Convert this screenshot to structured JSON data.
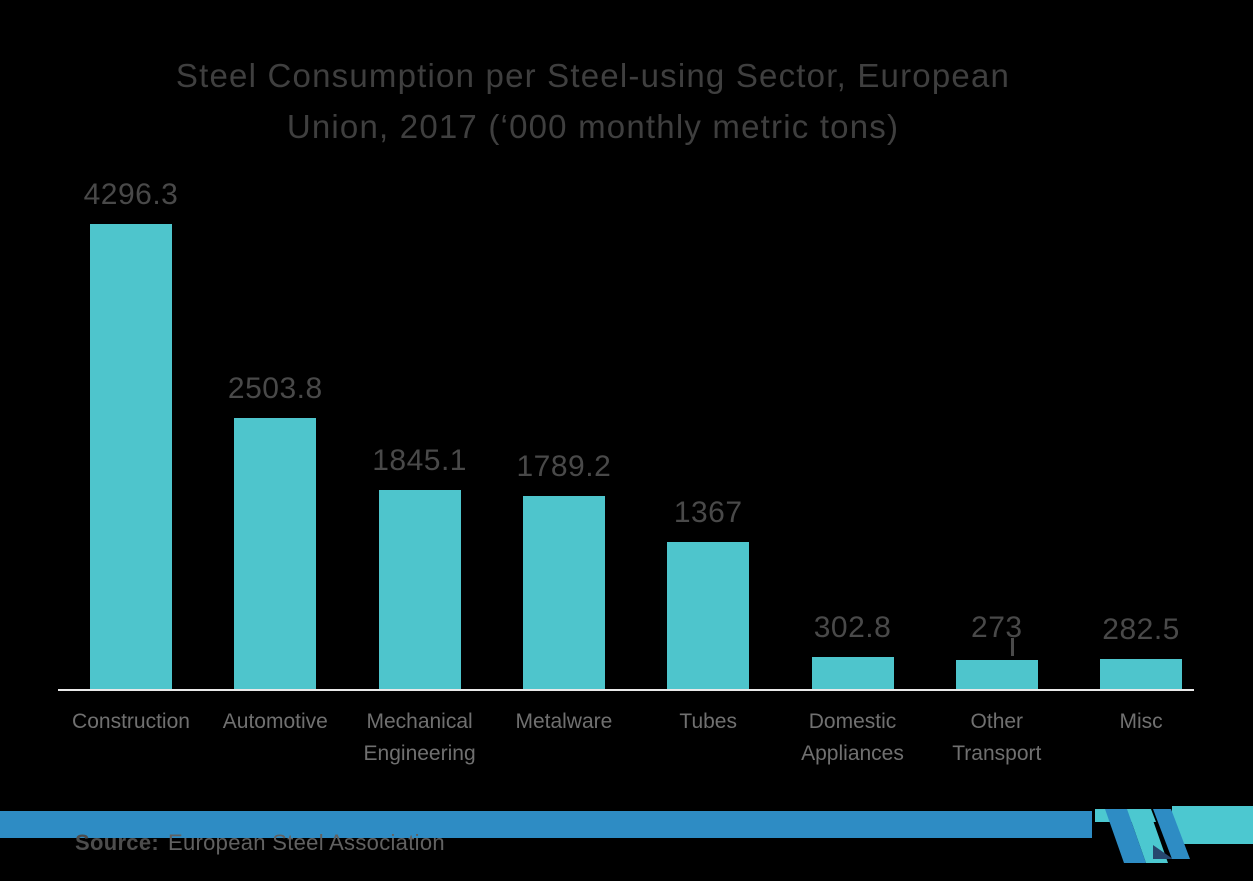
{
  "chart_data": {
    "type": "bar",
    "title": "Steel Consumption per Steel-using Sector, European Union, 2017 (‘000 monthly metric tons)",
    "title_lines": [
      "Steel Consumption per Steel-using Sector, European",
      "Union, 2017 (‘000 monthly metric tons)"
    ],
    "categories": [
      "Construction",
      "Automotive",
      "Mechanical Engineering",
      "Metalware",
      "Tubes",
      "Domestic Appliances",
      "Other Transport",
      "Misc"
    ],
    "category_lines": [
      [
        "Construction"
      ],
      [
        "Automotive"
      ],
      [
        "Mechanical",
        "Engineering"
      ],
      [
        "Metalware"
      ],
      [
        "Tubes"
      ],
      [
        "Domestic",
        "Appliances"
      ],
      [
        "Other",
        "Transport"
      ],
      [
        "Misc"
      ]
    ],
    "values": [
      4296.3,
      2503.8,
      1845.1,
      1789.2,
      1367,
      302.8,
      273,
      282.5
    ],
    "value_labels": [
      "4296.3",
      "2503.8",
      "1845.1",
      "1789.2",
      "1367",
      "302.8",
      "273",
      "282.5"
    ],
    "leader_line_indices": [
      6
    ],
    "xlabel": "",
    "ylabel": "",
    "ylim": [
      0,
      4500
    ],
    "grid": false,
    "legend": false,
    "bar_color": "#4ec5cc",
    "axis_line_color": "#e9e9e9",
    "value_label_color": "#494949",
    "category_label_color": "#707070",
    "title_color": "#3f3f3f"
  },
  "footer": {
    "source_label": "Source:",
    "source_text": "European Steel Association",
    "accent_bar_left_color": "#2e8cc4",
    "accent_bar_right_color": "#4cc8d0",
    "logo_name": "mordor-intelligence-logo",
    "logo_colors": {
      "blue": "#2e8cc4",
      "teal": "#4cc8d0",
      "navy": "#27476e"
    }
  }
}
